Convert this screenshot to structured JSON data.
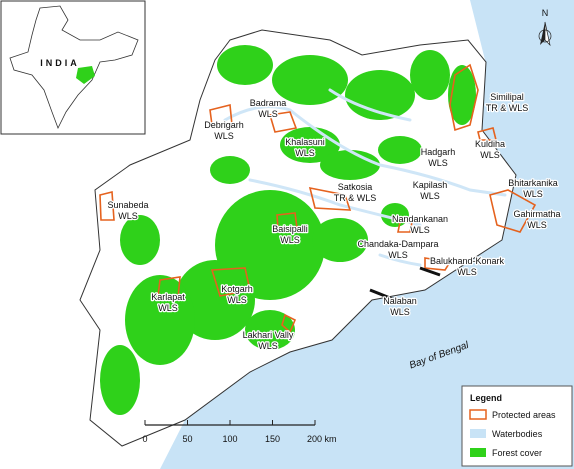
{
  "inset": {
    "label": "INDIA"
  },
  "north_arrow": {
    "label": "N"
  },
  "labels": [
    {
      "lines": [
        "Debrigarh",
        "WLS"
      ]
    },
    {
      "lines": [
        "Badrama",
        "WLS"
      ]
    },
    {
      "lines": [
        "Khalasuni",
        "WLS"
      ]
    },
    {
      "lines": [
        "Similipal",
        "TR & WLS"
      ]
    },
    {
      "lines": [
        "Kuldiha",
        "WLS"
      ]
    },
    {
      "lines": [
        "Hadgarh",
        "WLS"
      ]
    },
    {
      "lines": [
        "Kapilash",
        "WLS"
      ]
    },
    {
      "lines": [
        "Bhitarkanika",
        "WLS"
      ]
    },
    {
      "lines": [
        "Gahirmatha",
        "WLS"
      ]
    },
    {
      "lines": [
        "Satkosia",
        "TR & WLS"
      ]
    },
    {
      "lines": [
        "Sunabeda",
        "WLS"
      ]
    },
    {
      "lines": [
        "Baisipalli",
        "WLS"
      ]
    },
    {
      "lines": [
        "Nandankanan",
        "WLS"
      ]
    },
    {
      "lines": [
        "Chandaka-Dampara",
        "WLS"
      ]
    },
    {
      "lines": [
        "Balukhand-Konark",
        "WLS"
      ]
    },
    {
      "lines": [
        "Nalaban",
        "WLS"
      ]
    },
    {
      "lines": [
        "Kotgarh",
        "WLS"
      ]
    },
    {
      "lines": [
        "Karlapat",
        "WLS"
      ]
    },
    {
      "lines": [
        "Lakhari Vally",
        "WLS"
      ]
    }
  ],
  "sea_label": "Bay of Bengal",
  "scale_bar": {
    "ticks": [
      "0",
      "50",
      "100",
      "150",
      "200 km"
    ]
  },
  "legend": {
    "title": "Legend",
    "items": [
      "Protected areas",
      "Waterbodies",
      "Forest cover"
    ]
  }
}
